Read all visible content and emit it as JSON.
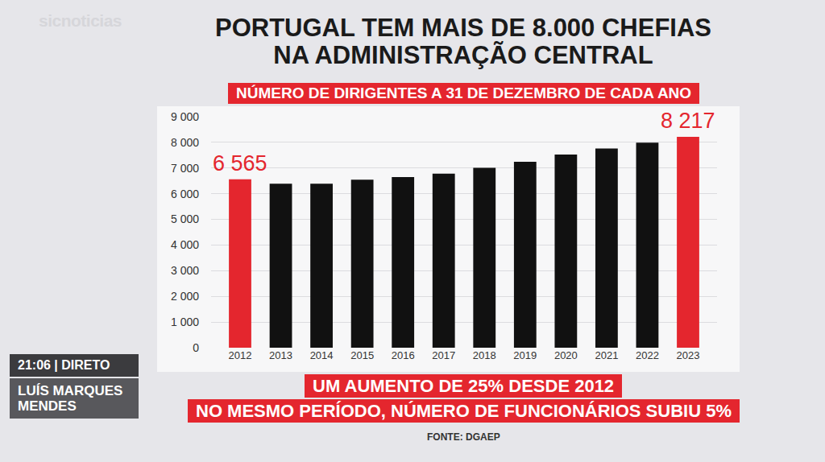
{
  "chart_data": {
    "type": "bar",
    "title": "PORTUGAL TEM MAIS DE 8.000 CHEFIAS NA ADMINISTRAÇÃO CENTRAL",
    "subtitle": "NÚMERO DE DIRIGENTES A 31 DE DEZEMBRO DE CADA ANO",
    "categories": [
      "2012",
      "2013",
      "2014",
      "2015",
      "2016",
      "2017",
      "2018",
      "2019",
      "2020",
      "2021",
      "2022",
      "2023"
    ],
    "values": [
      6565,
      6390,
      6390,
      6550,
      6650,
      6780,
      7010,
      7240,
      7530,
      7760,
      7990,
      8217
    ],
    "value_labels": [
      "6 565",
      null,
      null,
      null,
      null,
      null,
      null,
      null,
      null,
      null,
      null,
      "8 217"
    ],
    "colors": [
      "#e4262e",
      "#111111",
      "#111111",
      "#111111",
      "#111111",
      "#111111",
      "#111111",
      "#111111",
      "#111111",
      "#111111",
      "#111111",
      "#e4262e"
    ],
    "ylim": [
      0,
      9000
    ],
    "yticks": [
      0,
      {
        "value": 1000,
        "label": "1 000"
      },
      {
        "value": 2000,
        "label": "2 000"
      },
      {
        "value": 3000,
        "label": "3 000"
      },
      {
        "value": 4000,
        "label": "4 000"
      },
      {
        "value": 5000,
        "label": "5 000"
      },
      {
        "value": 6000,
        "label": "6 000"
      },
      {
        "value": 7000,
        "label": "7 000"
      },
      {
        "value": 8000,
        "label": "8 000"
      },
      {
        "value": 9000,
        "label": "9 000"
      }
    ],
    "grid": true,
    "footnotes": [
      "UM AUMENTO DE 25% DESDE 2012",
      "NO MESMO PERÍODO, NÚMERO DE FUNCIONÁRIOS SUBIU 5%"
    ],
    "source": "FONTE: DGAEP",
    "broadcast": {
      "logo": "sicnoticias",
      "live": "21:06 | DIRETO",
      "speaker": "LUÍS MARQUES MENDES"
    }
  }
}
